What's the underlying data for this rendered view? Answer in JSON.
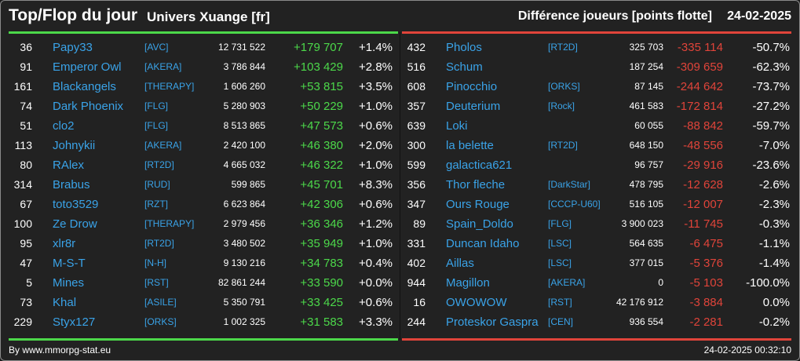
{
  "header": {
    "title": "Top/Flop du jour",
    "subtitle": "Univers Xuange [fr]",
    "right_title": "Différence joueurs [points flotte]",
    "date": "24-02-2025"
  },
  "colors": {
    "positive": "#4cd84a",
    "negative": "#e0443a",
    "link": "#3aa3e8"
  },
  "top": [
    {
      "rank": "36",
      "name": "Papy33",
      "tag": "[AVC]",
      "points": "12 731 522",
      "diff": "+179 707",
      "pct": "+1.4%"
    },
    {
      "rank": "91",
      "name": "Emperor Owl",
      "tag": "[AKERA]",
      "points": "3 786 844",
      "diff": "+103 429",
      "pct": "+2.8%"
    },
    {
      "rank": "161",
      "name": "Blackangels",
      "tag": "[THERAPY]",
      "points": "1 606 260",
      "diff": "+53 815",
      "pct": "+3.5%"
    },
    {
      "rank": "74",
      "name": "Dark Phoenix",
      "tag": "[FLG]",
      "points": "5 280 903",
      "diff": "+50 229",
      "pct": "+1.0%"
    },
    {
      "rank": "51",
      "name": "clo2",
      "tag": "[FLG]",
      "points": "8 513 865",
      "diff": "+47 573",
      "pct": "+0.6%"
    },
    {
      "rank": "113",
      "name": "Johnykii",
      "tag": "[AKERA]",
      "points": "2 420 100",
      "diff": "+46 380",
      "pct": "+2.0%"
    },
    {
      "rank": "80",
      "name": "RAlex",
      "tag": "[RT2D]",
      "points": "4 665 032",
      "diff": "+46 322",
      "pct": "+1.0%"
    },
    {
      "rank": "314",
      "name": "Brabus",
      "tag": "[RUD]",
      "points": "599 865",
      "diff": "+45 701",
      "pct": "+8.3%"
    },
    {
      "rank": "67",
      "name": "toto3529",
      "tag": "[RZT]",
      "points": "6 623 864",
      "diff": "+42 306",
      "pct": "+0.6%"
    },
    {
      "rank": "100",
      "name": "Ze Drow",
      "tag": "[THERAPY]",
      "points": "2 979 456",
      "diff": "+36 346",
      "pct": "+1.2%"
    },
    {
      "rank": "95",
      "name": "xlr8r",
      "tag": "[RT2D]",
      "points": "3 480 502",
      "diff": "+35 949",
      "pct": "+1.0%"
    },
    {
      "rank": "47",
      "name": "M-S-T",
      "tag": "[N-H]",
      "points": "9 130 216",
      "diff": "+34 783",
      "pct": "+0.4%"
    },
    {
      "rank": "5",
      "name": "Mines",
      "tag": "[RST]",
      "points": "82 861 244",
      "diff": "+33 590",
      "pct": "+0.0%"
    },
    {
      "rank": "73",
      "name": "Khal",
      "tag": "[ASILE]",
      "points": "5 350 791",
      "diff": "+33 425",
      "pct": "+0.6%"
    },
    {
      "rank": "229",
      "name": "Styx127",
      "tag": "[ORKS]",
      "points": "1 002 325",
      "diff": "+31 583",
      "pct": "+3.3%"
    }
  ],
  "flop": [
    {
      "rank": "432",
      "name": "Pholos",
      "tag": "[RT2D]",
      "points": "325 703",
      "diff": "-335 114",
      "pct": "-50.7%"
    },
    {
      "rank": "516",
      "name": "Schum",
      "tag": "",
      "points": "187 254",
      "diff": "-309 659",
      "pct": "-62.3%"
    },
    {
      "rank": "608",
      "name": "Pinocchio",
      "tag": "[ORKS]",
      "points": "87 145",
      "diff": "-244 642",
      "pct": "-73.7%"
    },
    {
      "rank": "357",
      "name": "Deuterium",
      "tag": "[Rock]",
      "points": "461 583",
      "diff": "-172 814",
      "pct": "-27.2%"
    },
    {
      "rank": "639",
      "name": "Loki",
      "tag": "",
      "points": "60 055",
      "diff": "-88 842",
      "pct": "-59.7%"
    },
    {
      "rank": "300",
      "name": "la belette",
      "tag": "[RT2D]",
      "points": "648 150",
      "diff": "-48 556",
      "pct": "-7.0%"
    },
    {
      "rank": "599",
      "name": "galactica621",
      "tag": "",
      "points": "96 757",
      "diff": "-29 916",
      "pct": "-23.6%"
    },
    {
      "rank": "356",
      "name": "Thor fleche",
      "tag": "[DarkStar]",
      "points": "478 795",
      "diff": "-12 628",
      "pct": "-2.6%"
    },
    {
      "rank": "347",
      "name": "Ours Rouge",
      "tag": "[CCCP-U60]",
      "points": "516 105",
      "diff": "-12 007",
      "pct": "-2.3%"
    },
    {
      "rank": "89",
      "name": "Spain_Doldo",
      "tag": "[FLG]",
      "points": "3 900 023",
      "diff": "-11 745",
      "pct": "-0.3%"
    },
    {
      "rank": "331",
      "name": "Duncan Idaho",
      "tag": "[LSC]",
      "points": "564 635",
      "diff": "-6 475",
      "pct": "-1.1%"
    },
    {
      "rank": "402",
      "name": "Aillas",
      "tag": "[LSC]",
      "points": "377 015",
      "diff": "-5 376",
      "pct": "-1.4%"
    },
    {
      "rank": "944",
      "name": "Magillon",
      "tag": "[AKERA]",
      "points": "0",
      "diff": "-5 103",
      "pct": "-100.0%"
    },
    {
      "rank": "16",
      "name": "OWOWOW",
      "tag": "[RST]",
      "points": "42 176 912",
      "diff": "-3 884",
      "pct": "0.0%"
    },
    {
      "rank": "244",
      "name": "Proteskor Gaspra",
      "tag": "[CEN]",
      "points": "936 554",
      "diff": "-2 281",
      "pct": "-0.2%"
    }
  ],
  "footer": {
    "credit": "By www.mmorpg-stat.eu",
    "timestamp": "24-02-2025 00:32:10"
  }
}
